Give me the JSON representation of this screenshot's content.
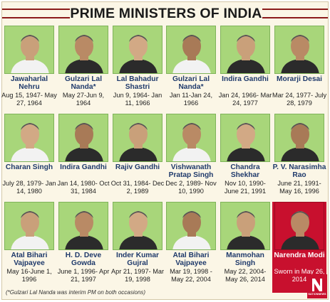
{
  "title": "PRIME MINISTERS OF INDIA",
  "footnote": "(*Gulzari Lal Nanda was interim PM on both occasions)",
  "logo": {
    "text": "NATIONNEWS",
    "color": "#c8102e"
  },
  "colors": {
    "photo_bg": "#a8d67a",
    "highlight_bg": "#c8102e",
    "name": "#1f3a6b",
    "title_stripe": "#8b1a1a"
  },
  "ministers": [
    {
      "name": "Jawaharlal Nehru",
      "term": "Aug 15, 1947- May 27, 1964"
    },
    {
      "name": "Gulzari Lal Nanda*",
      "term": "May 27-Jun 9, 1964"
    },
    {
      "name": "Lal Bahadur Shastri",
      "term": "Jun 9, 1964- Jan 11, 1966"
    },
    {
      "name": "Gulzari Lal Nanda*",
      "term": "Jan 11-Jan 24, 1966"
    },
    {
      "name": "Indira Gandhi",
      "term": "Jan 24, 1966- Mar 24, 1977"
    },
    {
      "name": "Morarji Desai",
      "term": "Mar 24, 1977- July 28, 1979"
    },
    {
      "name": "Charan Singh",
      "term": "July 28, 1979- Jan 14, 1980"
    },
    {
      "name": "Indira Gandhi",
      "term": "Jan 14, 1980- Oct 31, 1984"
    },
    {
      "name": "Rajiv Gandhi",
      "term": "Oct 31, 1984- Dec 2, 1989"
    },
    {
      "name": "Vishwanath Pratap Singh",
      "term": "Dec 2, 1989- Nov 10, 1990"
    },
    {
      "name": "Chandra Shekhar",
      "term": "Nov 10, 1990- June 21, 1991"
    },
    {
      "name": "P. V. Narasimha Rao",
      "term": "June 21, 1991- May 16, 1996"
    },
    {
      "name": "Atal Bihari Vajpayee",
      "term": "May 16-June 1, 1996"
    },
    {
      "name": "H. D. Deve Gowda",
      "term": "June 1, 1996- Apr 21, 1997"
    },
    {
      "name": "Inder Kumar Gujral",
      "term": "Apr 21, 1997- Mar 19, 1998"
    },
    {
      "name": "Atal Bihari Vajpayee",
      "term": "Mar 19, 1998 - May 22, 2004"
    },
    {
      "name": "Manmohan Singh",
      "term": "May 22, 2004- May 26, 2014"
    },
    {
      "name": "Narendra Modi",
      "term": "Sworn in May 26, 2014"
    }
  ]
}
